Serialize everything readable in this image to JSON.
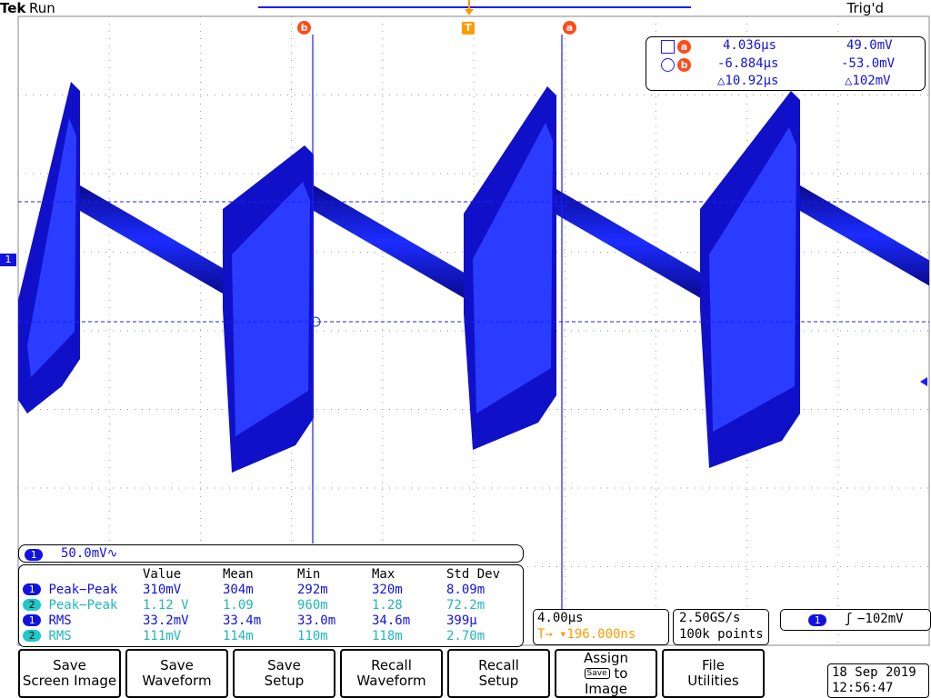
{
  "header": {
    "brand": "Tek",
    "status": "Run",
    "trigger_state": "Trig'd"
  },
  "markers": {
    "cursor_b": "b",
    "cursor_a": "a",
    "trigger": "T",
    "ch1": "1"
  },
  "cursors": {
    "a": {
      "time": "4.036µs",
      "voltage": "49.0mV"
    },
    "b": {
      "time": "-6.884µs",
      "voltage": "-53.0mV"
    },
    "delta": {
      "time": "△10.92µs",
      "voltage": "△102mV"
    }
  },
  "channel": {
    "num": "1",
    "scale": "50.0mV∿"
  },
  "measurements": {
    "headers": [
      "Value",
      "Mean",
      "Min",
      "Max",
      "Std Dev"
    ],
    "rows": [
      {
        "ch": "1",
        "name": "Peak−Peak",
        "value": "310mV",
        "mean": "304m",
        "min": "292m",
        "max": "320m",
        "std": "8.09m"
      },
      {
        "ch": "2",
        "name": "Peak−Peak",
        "value": "1.12 V",
        "mean": "1.09",
        "min": "960m",
        "max": "1.28",
        "std": "72.2m"
      },
      {
        "ch": "1",
        "name": "RMS",
        "value": "33.2mV",
        "mean": "33.4m",
        "min": "33.0m",
        "max": "34.6m",
        "std": "399µ"
      },
      {
        "ch": "2",
        "name": "RMS",
        "value": "111mV",
        "mean": "114m",
        "min": "110m",
        "max": "118m",
        "std": "2.70m"
      }
    ]
  },
  "timebase": {
    "scale": "4.00µs",
    "position": "▾196.000ns",
    "marker": "T→"
  },
  "acquisition": {
    "rate": "2.50GS/s",
    "points": "100k points"
  },
  "trigger": {
    "ch": "1",
    "slope": "ʃ",
    "level": "−102mV"
  },
  "softkeys": [
    {
      "line1": "Save",
      "line2": "Screen Image"
    },
    {
      "line1": "Save",
      "line2": "Waveform"
    },
    {
      "line1": "Save",
      "line2": "Setup"
    },
    {
      "line1": "Recall",
      "line2": "Waveform"
    },
    {
      "line1": "Recall",
      "line2": "Setup"
    },
    {
      "line1": "Assign",
      "line2": "Save",
      "line3": "to",
      "line4": "Image"
    },
    {
      "line1": "File",
      "line2": "Utilities"
    }
  ],
  "datetime": {
    "date": "18 Sep  2019",
    "time": "12:56:47"
  },
  "colors": {
    "ch1": "#1212e0",
    "ch2": "#20c8c8",
    "cursor": "#ff4a1a",
    "trigger": "#ff9b00",
    "waveform": "#1010d0"
  }
}
